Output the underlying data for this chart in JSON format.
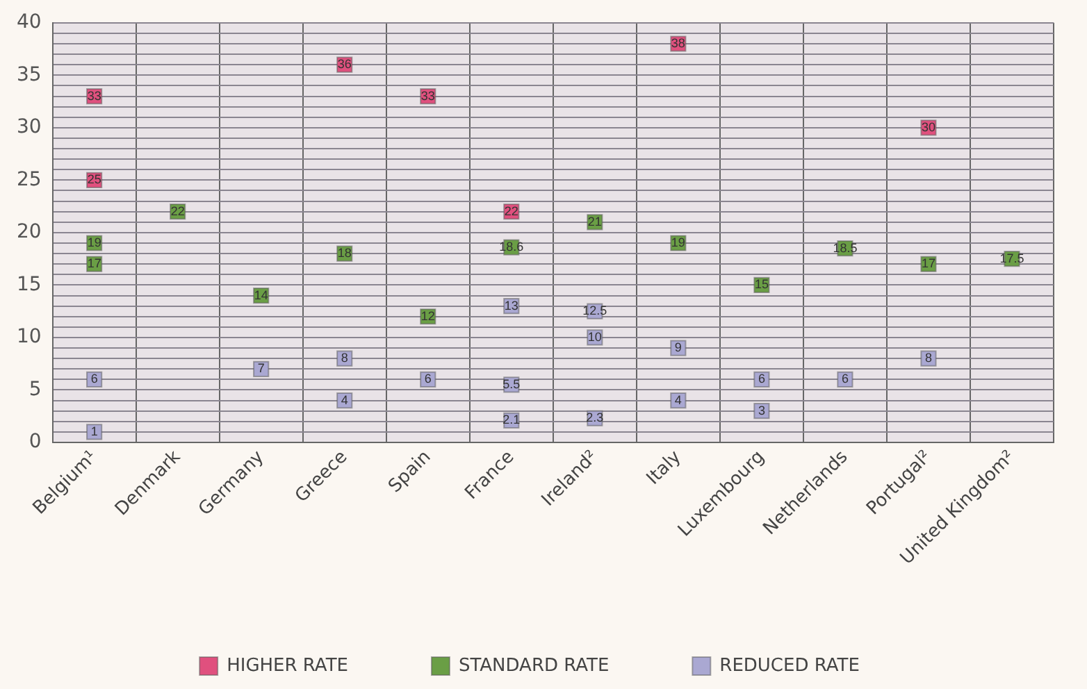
{
  "chart_data": {
    "type": "scatter",
    "categories": [
      "Belgium¹",
      "Denmark",
      "Germany",
      "Greece",
      "Spain",
      "France",
      "Ireland²",
      "Italy",
      "Luxembourg",
      "Netherlands",
      "Portugal²",
      "United Kingdom²"
    ],
    "series": [
      {
        "name": "HIGHER RATE",
        "color": "#e0507e",
        "x": [
          "Belgium¹",
          "Belgium¹",
          "Greece",
          "Spain",
          "France",
          "Italy",
          "Portugal²"
        ],
        "values": [
          25,
          33,
          36,
          33,
          22,
          38,
          30
        ]
      },
      {
        "name": "STANDARD RATE",
        "color": "#6a9e45",
        "x": [
          "Belgium¹",
          "Belgium¹",
          "Denmark",
          "Germany",
          "Greece",
          "Spain",
          "France",
          "Ireland²",
          "Italy",
          "Luxembourg",
          "Netherlands",
          "Portugal²",
          "United Kingdom²"
        ],
        "values": [
          17,
          19,
          22,
          14,
          18,
          12,
          18.6,
          21,
          19,
          15,
          18.5,
          17,
          17.5
        ]
      },
      {
        "name": "REDUCED RATE",
        "color": "#aaa8d2",
        "x": [
          "Belgium¹",
          "Belgium¹",
          "Germany",
          "Greece",
          "Greece",
          "Spain",
          "France",
          "France",
          "France",
          "Ireland²",
          "Ireland²",
          "Ireland²",
          "Italy",
          "Italy",
          "Luxembourg",
          "Luxembourg",
          "Netherlands",
          "Portugal²"
        ],
        "values": [
          1,
          6,
          7,
          4,
          8,
          6,
          2.1,
          5.5,
          13,
          2.3,
          10,
          12.5,
          4,
          9,
          3,
          6,
          6,
          8
        ]
      }
    ],
    "ylim": [
      0,
      40
    ],
    "yticks": [
      0,
      {
        "value": 1,
        "label": null
      },
      {
        "value": 2,
        "label": null
      },
      {
        "value": 3,
        "label": null
      },
      {
        "value": 4,
        "label": null
      },
      5,
      {
        "value": 6,
        "label": null
      },
      {
        "value": 7,
        "label": null
      },
      {
        "value": 8,
        "label": null
      },
      {
        "value": 9,
        "label": null
      },
      10,
      {
        "value": 11,
        "label": null
      },
      {
        "value": 12,
        "label": null
      },
      {
        "value": 13,
        "label": null
      },
      {
        "value": 14,
        "label": null
      },
      15,
      {
        "value": 16,
        "label": null
      },
      {
        "value": 17,
        "label": null
      },
      {
        "value": 18,
        "label": null
      },
      {
        "value": 19,
        "label": null
      },
      20,
      {
        "value": 21,
        "label": null
      },
      {
        "value": 22,
        "label": null
      },
      {
        "value": 23,
        "label": null
      },
      {
        "value": 24,
        "label": null
      },
      25,
      {
        "value": 26,
        "label": null
      },
      {
        "value": 27,
        "label": null
      },
      {
        "value": 28,
        "label": null
      },
      {
        "value": 29,
        "label": null
      },
      30,
      {
        "value": 31,
        "label": null
      },
      {
        "value": 32,
        "label": null
      },
      {
        "value": 33,
        "label": null
      },
      {
        "value": 34,
        "label": null
      },
      35,
      {
        "value": 36,
        "label": null
      },
      {
        "value": 37,
        "label": null
      },
      {
        "value": 38,
        "label": null
      },
      {
        "value": 39,
        "label": null
      },
      40
    ],
    "grid": true,
    "legend": "bottom",
    "marker": "square",
    "data_labels": true
  }
}
